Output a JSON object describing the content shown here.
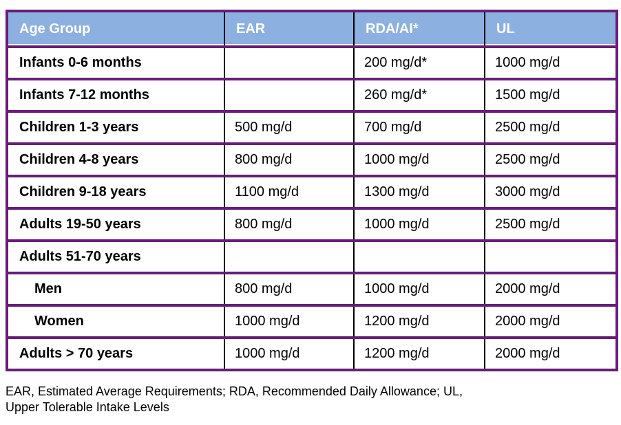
{
  "colors": {
    "header_bg": "#8CB0DF",
    "header_text": "#FFFFFF",
    "row_border_purple": "#661E78",
    "column_divider_black": "#000000",
    "body_text": "#000000"
  },
  "table": {
    "columns": [
      "Age Group",
      "EAR",
      "RDA/AI*",
      "UL"
    ],
    "rows": [
      {
        "label": "Infants 0-6 months",
        "ear": "",
        "rda": "200 mg/d*",
        "ul": "1000 mg/d"
      },
      {
        "label": "Infants 7-12 months",
        "ear": "",
        "rda": "260 mg/d*",
        "ul": "1500 mg/d"
      },
      {
        "label": "Children 1-3 years",
        "ear": "500 mg/d",
        "rda": "700 mg/d",
        "ul": "2500 mg/d"
      },
      {
        "label": "Children 4-8 years",
        "ear": "800 mg/d",
        "rda": "1000 mg/d",
        "ul": "2500 mg/d"
      },
      {
        "label": "Children 9-18 years",
        "ear": "1100 mg/d",
        "rda": "1300 mg/d",
        "ul": "3000 mg/d"
      },
      {
        "label": "Adults 19-50 years",
        "ear": "800 mg/d",
        "rda": "1000 mg/d",
        "ul": "2500 mg/d"
      },
      {
        "label": "Adults 51-70 years",
        "ear": "",
        "rda": "",
        "ul": ""
      },
      {
        "label": "Men",
        "ear": "800 mg/d",
        "rda": "1000 mg/d",
        "ul": "2000 mg/d"
      },
      {
        "label": "Women",
        "ear": "1000 mg/d",
        "rda": "1200 mg/d",
        "ul": "2000 mg/d"
      },
      {
        "label": "Adults > 70 years",
        "ear": "1000 mg/d",
        "rda": "1200 mg/d",
        "ul": "2000 mg/d"
      }
    ]
  },
  "footnote": {
    "line1": "EAR, Estimated Average Requirements; RDA, Recommended Daily Allowance; UL,",
    "line2": "Upper Tolerable Intake Levels"
  }
}
